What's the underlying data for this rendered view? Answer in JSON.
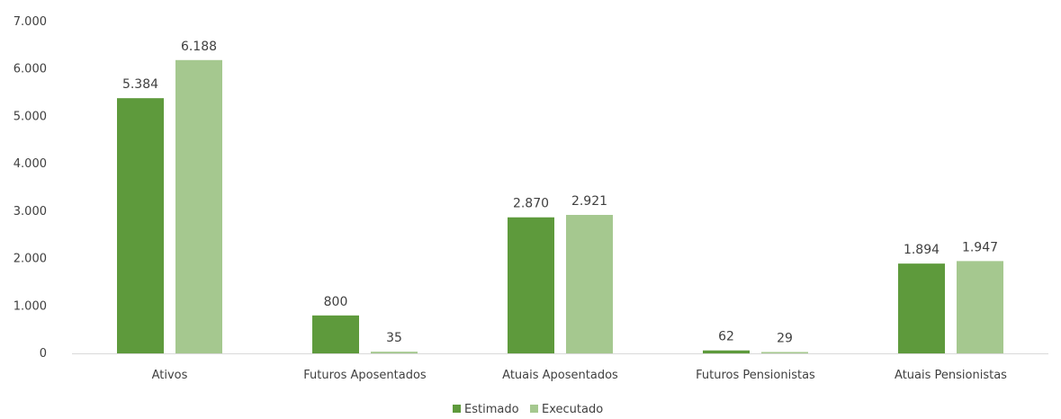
{
  "chart_data": {
    "type": "bar",
    "title": "",
    "xlabel": "",
    "ylabel": "",
    "ylim": [
      0,
      7000
    ],
    "yticks": [
      0,
      1000,
      2000,
      3000,
      4000,
      5000,
      6000,
      7000
    ],
    "ytick_labels": [
      "0",
      "1.000",
      "2.000",
      "3.000",
      "4.000",
      "5.000",
      "6.000",
      "7.000"
    ],
    "grid": false,
    "legend_position": "bottom",
    "categories": [
      "Ativos",
      "Futuros Aposentados",
      "Atuais Aposentados",
      "Futuros Pensionistas",
      "Atuais Pensionistas"
    ],
    "series": [
      {
        "name": "Estimado",
        "color": "#5e9a3c",
        "values": [
          5384,
          800,
          2870,
          62,
          1894
        ],
        "labels": [
          "5.384",
          "800",
          "2.870",
          "62",
          "1.894"
        ]
      },
      {
        "name": "Executado",
        "color": "#a5c88f",
        "values": [
          6188,
          35,
          2921,
          29,
          1947
        ],
        "labels": [
          "6.188",
          "35",
          "2.921",
          "29",
          "1.947"
        ]
      }
    ]
  }
}
